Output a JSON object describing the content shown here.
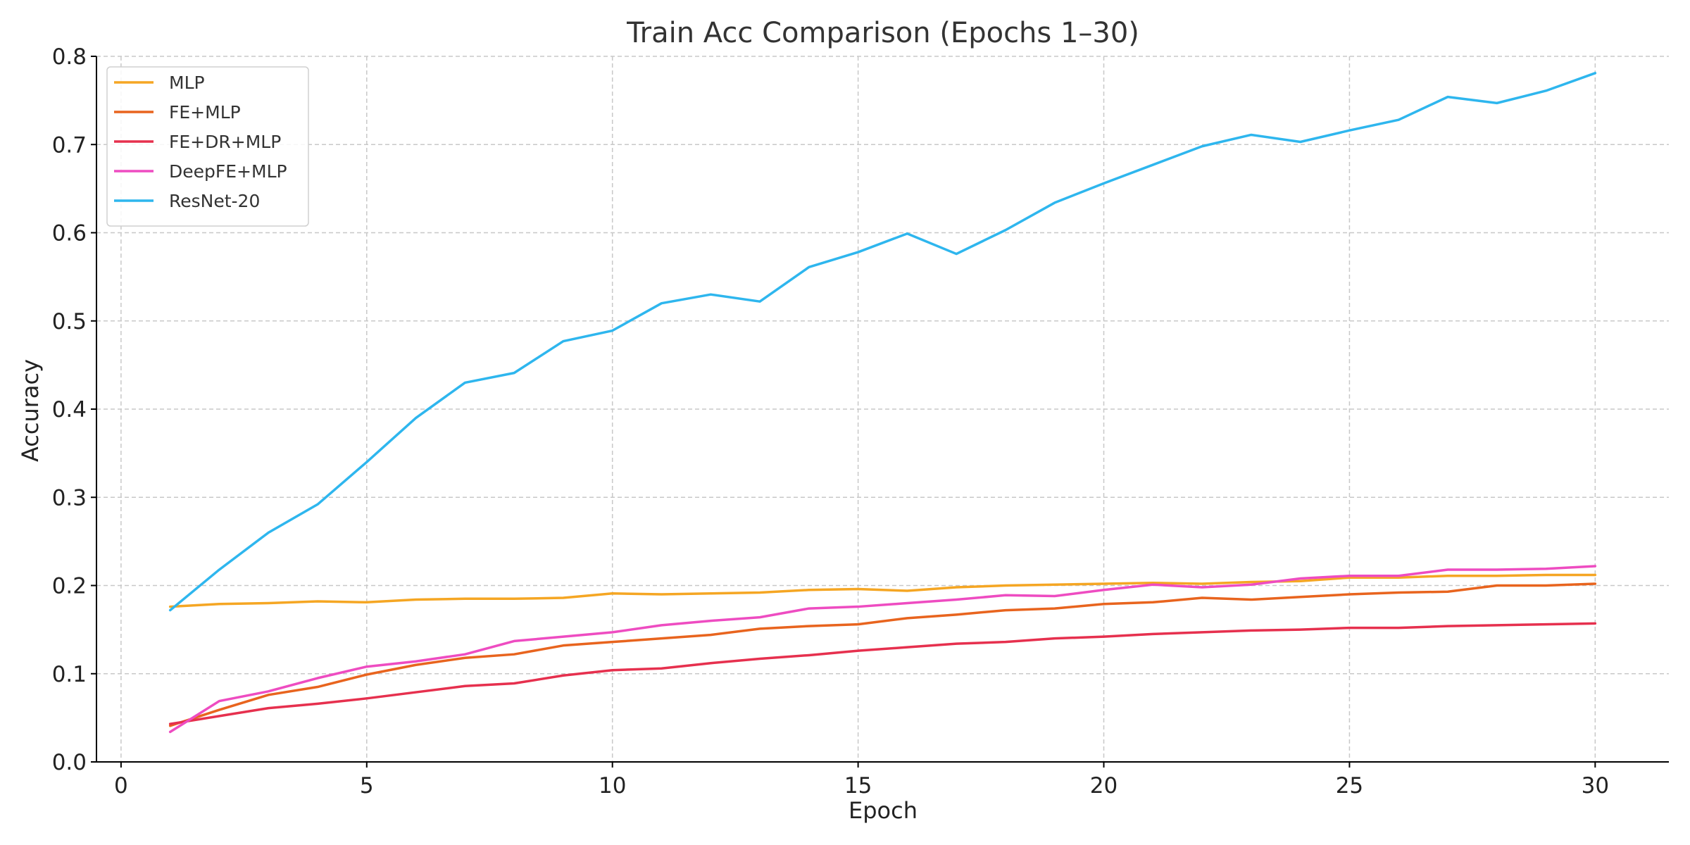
{
  "chart_data": {
    "type": "line",
    "title": "Train Acc Comparison (Epochs 1–30)",
    "xlabel": "Epoch",
    "ylabel": "Accuracy",
    "xlim": [
      -0.5,
      31.5
    ],
    "ylim": [
      0.0,
      0.8
    ],
    "xticks": [
      0,
      5,
      10,
      15,
      20,
      25,
      30
    ],
    "yticks": [
      0.0,
      0.1,
      0.2,
      0.3,
      0.4,
      0.5,
      0.6,
      0.7,
      0.8
    ],
    "grid": true,
    "legend_position": "top-left",
    "x": [
      1,
      2,
      3,
      4,
      5,
      6,
      7,
      8,
      9,
      10,
      11,
      12,
      13,
      14,
      15,
      16,
      17,
      18,
      19,
      20,
      21,
      22,
      23,
      24,
      25,
      26,
      27,
      28,
      29,
      30
    ],
    "series": [
      {
        "name": "MLP",
        "color": "#f5a623",
        "values": [
          0.176,
          0.179,
          0.18,
          0.182,
          0.181,
          0.184,
          0.185,
          0.185,
          0.186,
          0.191,
          0.19,
          0.191,
          0.192,
          0.195,
          0.196,
          0.194,
          0.198,
          0.2,
          0.201,
          0.202,
          0.203,
          0.202,
          0.204,
          0.205,
          0.209,
          0.209,
          0.211,
          0.211,
          0.212,
          0.212
        ]
      },
      {
        "name": "FE+MLP",
        "color": "#e8641e",
        "values": [
          0.041,
          0.059,
          0.076,
          0.085,
          0.099,
          0.11,
          0.118,
          0.122,
          0.132,
          0.136,
          0.14,
          0.144,
          0.151,
          0.154,
          0.156,
          0.163,
          0.167,
          0.172,
          0.174,
          0.179,
          0.181,
          0.186,
          0.184,
          0.187,
          0.19,
          0.192,
          0.193,
          0.2,
          0.2,
          0.202
        ]
      },
      {
        "name": "FE+DR+MLP",
        "color": "#e6304e",
        "values": [
          0.043,
          0.052,
          0.061,
          0.066,
          0.072,
          0.079,
          0.086,
          0.089,
          0.098,
          0.104,
          0.106,
          0.112,
          0.117,
          0.121,
          0.126,
          0.13,
          0.134,
          0.136,
          0.14,
          0.142,
          0.145,
          0.147,
          0.149,
          0.15,
          0.152,
          0.152,
          0.154,
          0.155,
          0.156,
          0.157
        ]
      },
      {
        "name": "DeepFE+MLP",
        "color": "#ee4cc1",
        "values": [
          0.034,
          0.069,
          0.08,
          0.095,
          0.108,
          0.114,
          0.122,
          0.137,
          0.142,
          0.147,
          0.155,
          0.16,
          0.164,
          0.174,
          0.176,
          0.18,
          0.184,
          0.189,
          0.188,
          0.195,
          0.201,
          0.198,
          0.201,
          0.208,
          0.211,
          0.211,
          0.218,
          0.218,
          0.219,
          0.222
        ]
      },
      {
        "name": "ResNet-20",
        "color": "#2eb6ee",
        "values": [
          0.172,
          0.218,
          0.26,
          0.292,
          0.34,
          0.39,
          0.43,
          0.441,
          0.477,
          0.489,
          0.52,
          0.53,
          0.522,
          0.561,
          0.578,
          0.599,
          0.576,
          0.603,
          0.634,
          0.656,
          0.677,
          0.698,
          0.711,
          0.703,
          0.716,
          0.728,
          0.754,
          0.747,
          0.761,
          0.781
        ]
      }
    ]
  }
}
